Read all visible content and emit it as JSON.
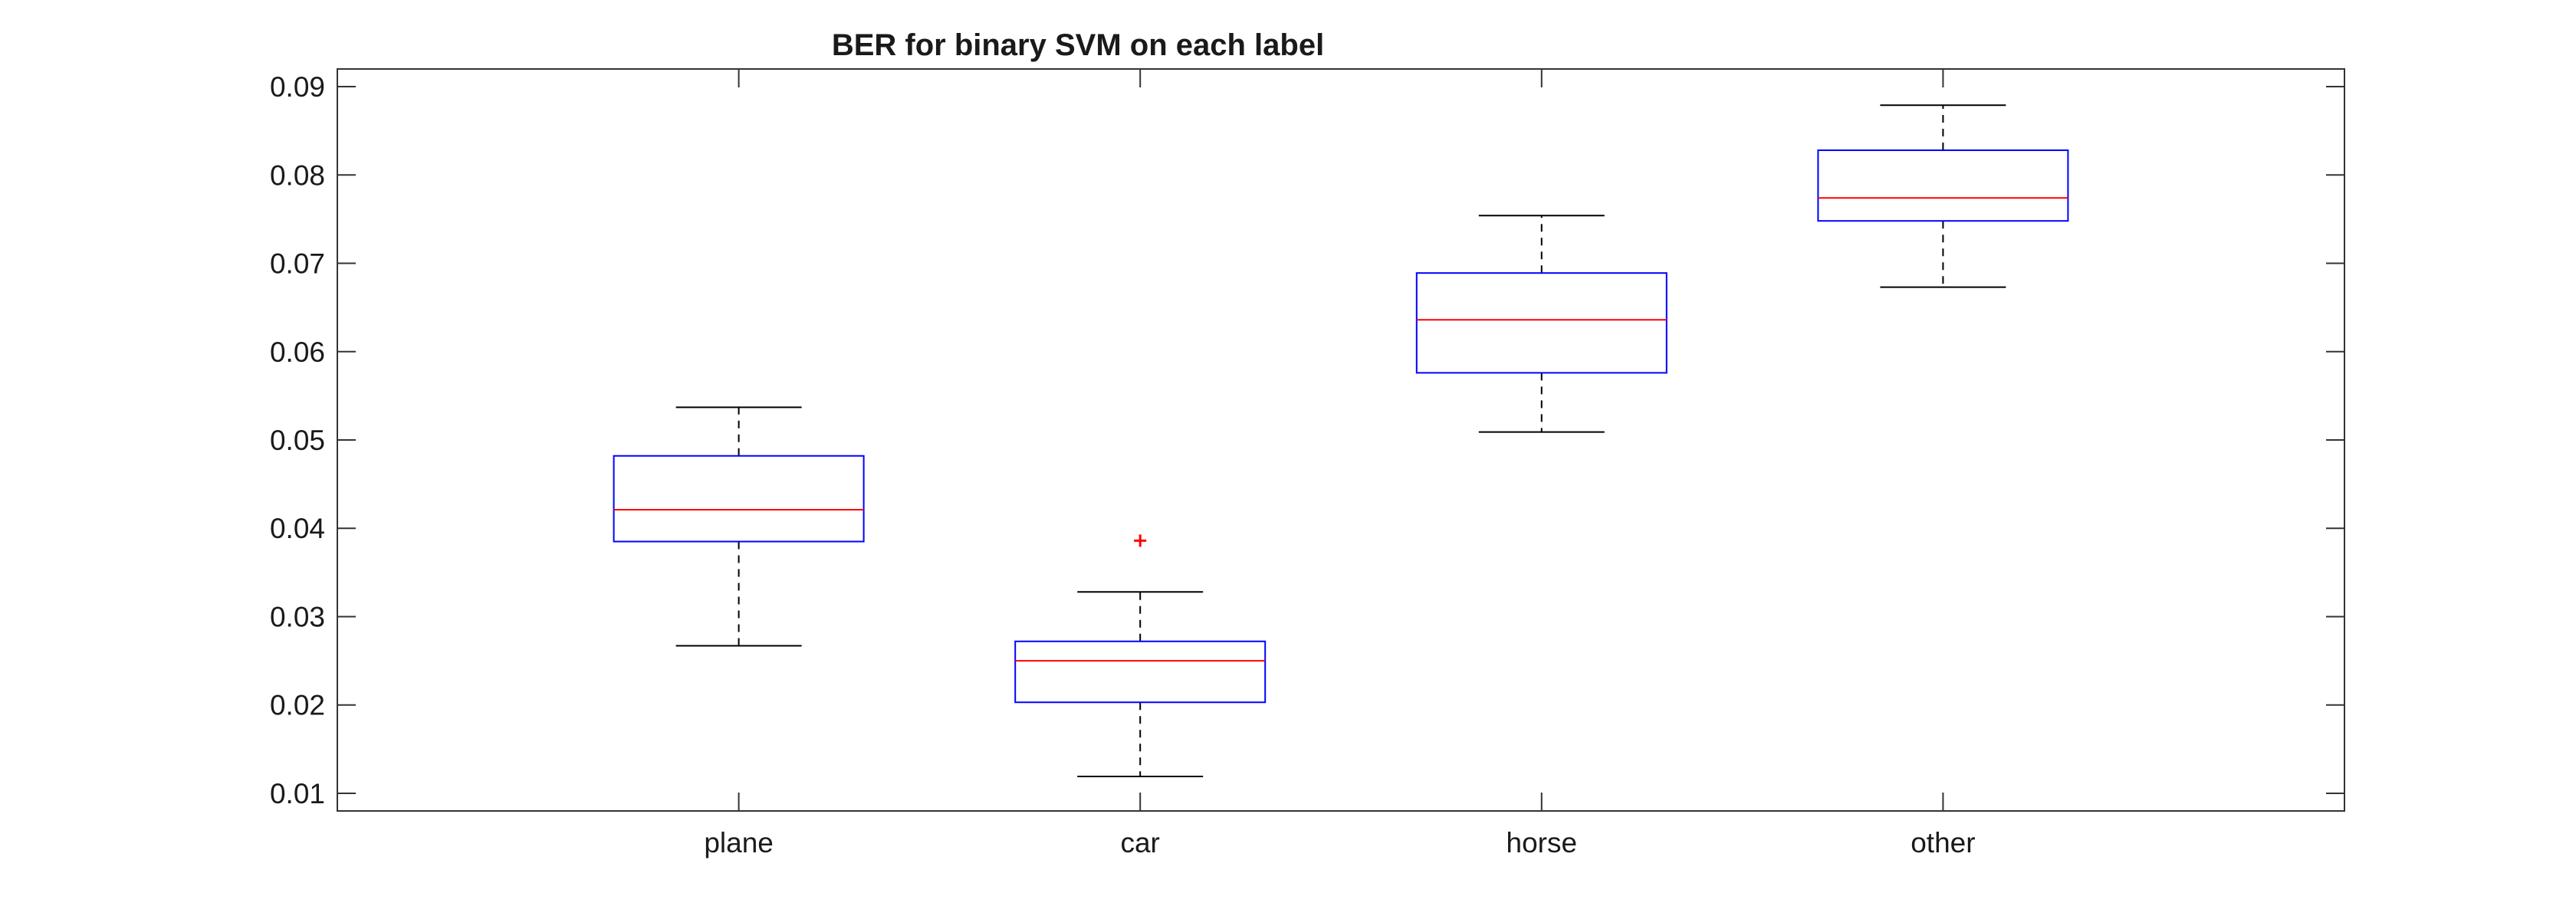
{
  "chart_data": {
    "type": "box",
    "title": "BER for binary SVM on each label",
    "xlabel": "",
    "ylabel": "",
    "categories": [
      "plane",
      "car",
      "horse",
      "other"
    ],
    "ylim": [
      0.008,
      0.092
    ],
    "yticks": [
      0.01,
      0.02,
      0.03,
      0.04,
      0.05,
      0.06,
      0.07,
      0.08,
      0.09
    ],
    "ytick_labels": [
      "0.01",
      "0.02",
      "0.03",
      "0.04",
      "0.05",
      "0.06",
      "0.07",
      "0.08",
      "0.09"
    ],
    "grid": false,
    "legend": "none",
    "boxes": [
      {
        "category": "plane",
        "whisker_low": 0.0267,
        "q1": 0.0385,
        "median": 0.0421,
        "q3": 0.0482,
        "whisker_high": 0.0537,
        "outliers": []
      },
      {
        "category": "car",
        "whisker_low": 0.0119,
        "q1": 0.0203,
        "median": 0.025,
        "q3": 0.0272,
        "whisker_high": 0.0328,
        "outliers": [
          0.0386
        ]
      },
      {
        "category": "horse",
        "whisker_low": 0.0509,
        "q1": 0.0576,
        "median": 0.0636,
        "q3": 0.0689,
        "whisker_high": 0.0754,
        "outliers": []
      },
      {
        "category": "other",
        "whisker_low": 0.0673,
        "q1": 0.0748,
        "median": 0.0774,
        "q3": 0.0828,
        "whisker_high": 0.0879,
        "outliers": []
      }
    ],
    "colors": {
      "box": "#0000ff",
      "median": "#ff0000",
      "whisker": "#000000",
      "outlier": "#ff0000",
      "axes": "#333333"
    }
  }
}
